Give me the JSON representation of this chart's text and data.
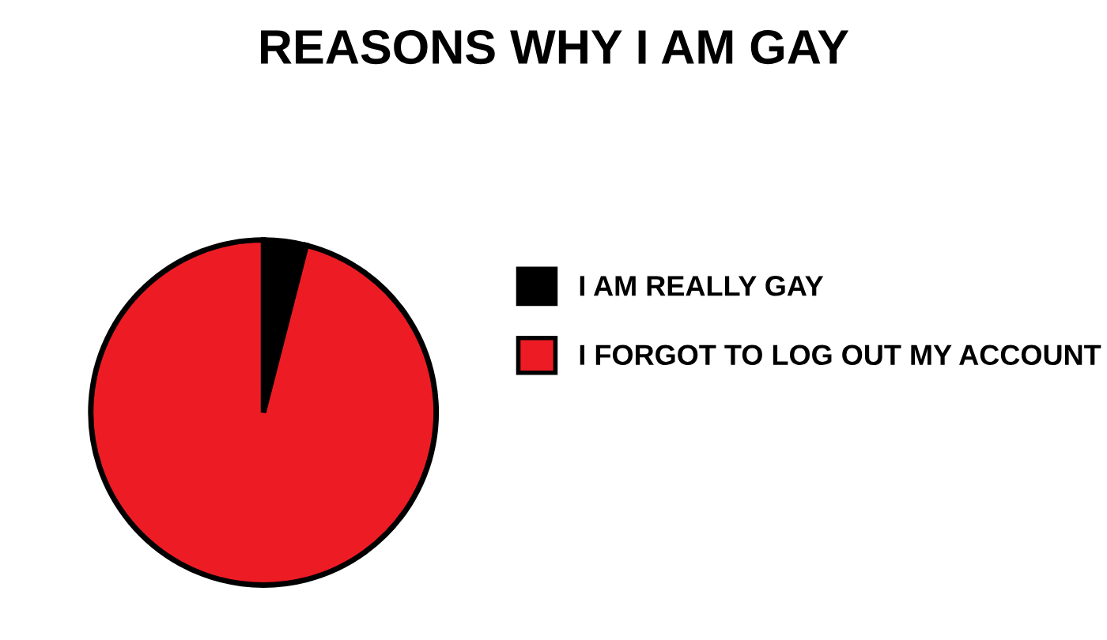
{
  "chart_data": {
    "type": "pie",
    "title": "REASONS WHY I AM GAY",
    "categories": [
      "I AM REALLY GAY",
      "I FORGOT TO LOG OUT MY ACCOUNT"
    ],
    "values": [
      4,
      96
    ],
    "colors": [
      "#000000",
      "#ed1c24"
    ],
    "legend": "right"
  }
}
